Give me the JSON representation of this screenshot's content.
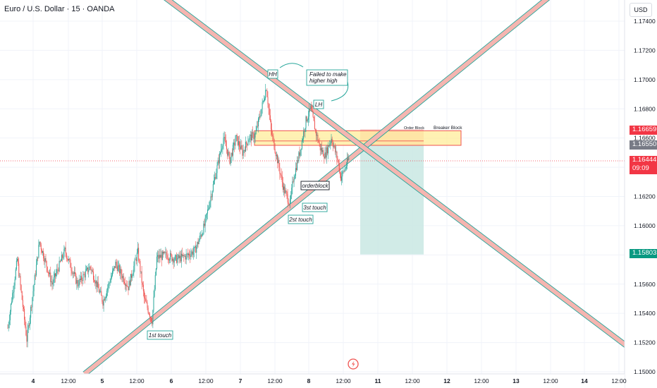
{
  "symbol_title": "Euro / U.S. Dollar · 15 · OANDA",
  "currency_button": "USD",
  "price_badges": {
    "red_top": "1.16659",
    "gray": "1.16550",
    "current": "1.16444",
    "countdown": "09:09",
    "target": "1.15803"
  },
  "colors": {
    "up": "#26a69a",
    "down": "#ef5350",
    "zone_fill": "#ffec99",
    "zone_border": "#ef5350",
    "trendline": "#26a69a",
    "trend_band": "#f5b5b0",
    "profit_zone": "#cce9e4",
    "loss_zone": "#f8c9c7"
  },
  "chart_data": {
    "type": "candlestick",
    "title": "Euro / U.S. Dollar · 15 · OANDA",
    "y_axis": {
      "ticks": [
        "1.17400",
        "1.17200",
        "1.17000",
        "1.16800",
        "1.16600",
        "1.16400",
        "1.16200",
        "1.16000",
        "1.15800",
        "1.15600",
        "1.15400",
        "1.15200",
        "1.15000"
      ],
      "range": [
        1.15,
        1.1746
      ]
    },
    "x_axis": {
      "ticks": [
        "4",
        "12:00",
        "5",
        "12:00",
        "6",
        "12:00",
        "7",
        "12:00",
        "8",
        "12:00",
        "11",
        "12:00",
        "12",
        "12:00",
        "13",
        "12:00",
        "14",
        "12:00"
      ]
    },
    "price_path": [
      [
        0,
        1.153
      ],
      [
        3,
        1.1577
      ],
      [
        6,
        1.1522
      ],
      [
        10,
        1.1589
      ],
      [
        14,
        1.156
      ],
      [
        18,
        1.1583
      ],
      [
        22,
        1.156
      ],
      [
        26,
        1.1572
      ],
      [
        30,
        1.1548
      ],
      [
        34,
        1.1574
      ],
      [
        38,
        1.1558
      ],
      [
        41,
        1.1582
      ],
      [
        43,
        1.155
      ],
      [
        45.5,
        1.1535
      ],
      [
        47,
        1.1578
      ],
      [
        50,
        1.158
      ],
      [
        53,
        1.1577
      ],
      [
        56,
        1.1579
      ],
      [
        59,
        1.1583
      ],
      [
        62,
        1.16
      ],
      [
        65,
        1.163
      ],
      [
        68,
        1.166
      ],
      [
        70,
        1.1645
      ],
      [
        72,
        1.166
      ],
      [
        74,
        1.165
      ],
      [
        76,
        1.166
      ],
      [
        78,
        1.1662
      ],
      [
        80,
        1.168
      ],
      [
        81.5,
        1.1695
      ],
      [
        83,
        1.1665
      ],
      [
        85,
        1.1645
      ],
      [
        87,
        1.1625
      ],
      [
        89,
        1.1615
      ],
      [
        90,
        1.1632
      ],
      [
        92,
        1.165
      ],
      [
        94,
        1.1672
      ],
      [
        95.5,
        1.168
      ],
      [
        97,
        1.1665
      ],
      [
        98.5,
        1.1653
      ],
      [
        100,
        1.1648
      ],
      [
        102,
        1.166
      ],
      [
        104,
        1.1645
      ],
      [
        105,
        1.1633
      ],
      [
        106.5,
        1.164
      ],
      [
        107.5,
        1.1646
      ]
    ],
    "annotations": [
      {
        "type": "label",
        "text": "HH"
      },
      {
        "type": "label",
        "text": "LH"
      },
      {
        "type": "label",
        "text": "Failed to make higher high"
      },
      {
        "type": "label",
        "text": "orderblock"
      },
      {
        "type": "label",
        "text": "1st touch"
      },
      {
        "type": "label",
        "text": "2st touch"
      },
      {
        "type": "label",
        "text": "3st touch"
      },
      {
        "type": "label",
        "text": "Order Block"
      },
      {
        "type": "label",
        "text": "Breaker Block"
      }
    ],
    "zones": [
      {
        "name": "Order Block",
        "from": 1.1655,
        "to": 1.1665
      },
      {
        "name": "short position",
        "entry": 1.1655,
        "stop": 1.1666,
        "target": 1.15803
      }
    ],
    "trendlines": [
      {
        "kind": "ascending support",
        "from_price": 1.1536,
        "to_price": 1.175
      },
      {
        "kind": "descending resistance",
        "from_price": 1.175,
        "to_price": 1.1516
      }
    ]
  }
}
